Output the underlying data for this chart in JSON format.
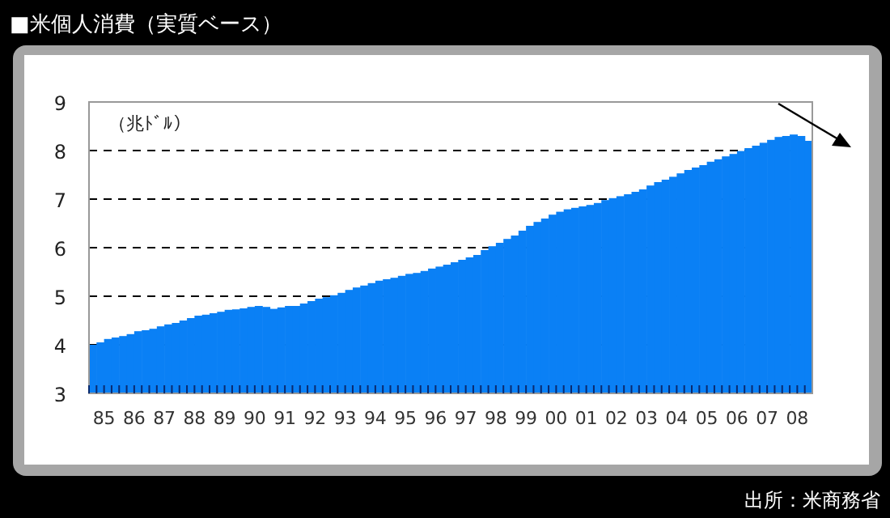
{
  "chart_data": {
    "type": "bar",
    "title": "■米個人消費（実質ベース）",
    "annotations": [
      "（兆ﾄﾞﾙ）",
      "出所：米商務省"
    ],
    "categories": [
      null,
      "85",
      null,
      null,
      null,
      "86",
      null,
      null,
      null,
      "87",
      null,
      null,
      null,
      "88",
      null,
      null,
      null,
      "89",
      null,
      null,
      null,
      "90",
      null,
      null,
      null,
      "91",
      null,
      null,
      null,
      "92",
      null,
      null,
      null,
      "93",
      null,
      null,
      null,
      "94",
      null,
      null,
      null,
      "95",
      null,
      null,
      null,
      "96",
      null,
      null,
      null,
      "97",
      null,
      null,
      null,
      "98",
      null,
      null,
      null,
      "99",
      null,
      null,
      null,
      "00",
      null,
      null,
      null,
      "01",
      null,
      null,
      null,
      "02",
      null,
      null,
      null,
      "03",
      null,
      null,
      null,
      "04",
      null,
      null,
      null,
      "05",
      null,
      null,
      null,
      "06",
      null,
      null,
      null,
      "07",
      null,
      null,
      null,
      "08",
      null,
      null
    ],
    "values": [
      4.0,
      4.05,
      4.12,
      4.15,
      4.18,
      4.22,
      4.28,
      4.3,
      4.33,
      4.38,
      4.42,
      4.45,
      4.5,
      4.55,
      4.6,
      4.62,
      4.65,
      4.68,
      4.72,
      4.73,
      4.75,
      4.78,
      4.8,
      4.78,
      4.74,
      4.77,
      4.8,
      4.8,
      4.85,
      4.9,
      4.95,
      4.98,
      5.02,
      5.07,
      5.13,
      5.18,
      5.22,
      5.27,
      5.32,
      5.35,
      5.38,
      5.42,
      5.46,
      5.48,
      5.52,
      5.57,
      5.61,
      5.65,
      5.7,
      5.75,
      5.8,
      5.85,
      5.95,
      6.03,
      6.1,
      6.18,
      6.25,
      6.35,
      6.45,
      6.53,
      6.6,
      6.68,
      6.74,
      6.79,
      6.82,
      6.85,
      6.88,
      6.92,
      6.98,
      7.02,
      7.06,
      7.1,
      7.15,
      7.2,
      7.28,
      7.35,
      7.4,
      7.46,
      7.53,
      7.6,
      7.65,
      7.7,
      7.77,
      7.82,
      7.88,
      7.93,
      7.99,
      8.05,
      8.1,
      8.16,
      8.22,
      8.28,
      8.3,
      8.33,
      8.3,
      8.2
    ],
    "color": "#0a80f5",
    "ylim": [
      3,
      9
    ],
    "yticks": [
      3,
      4,
      5,
      6,
      7,
      8,
      9
    ],
    "grid": "y",
    "line_style": "dashed"
  }
}
